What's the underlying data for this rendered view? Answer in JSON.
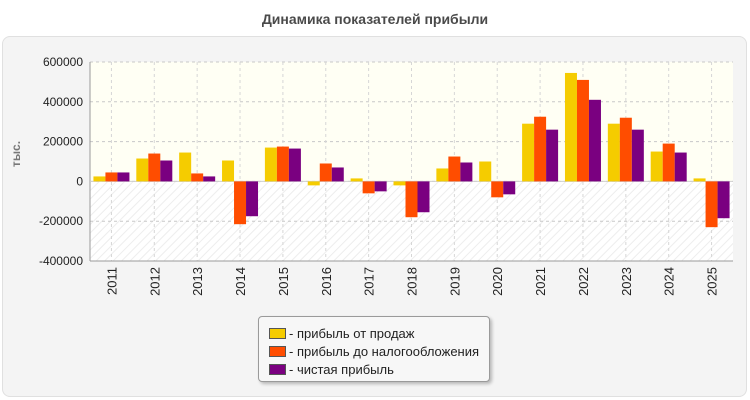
{
  "chart_data": {
    "type": "bar",
    "title": "Динамика показателей прибыли",
    "ylabel": "тыс.",
    "xlabel": "",
    "categories": [
      "2011",
      "2012",
      "2013",
      "2014",
      "2015",
      "2016",
      "2017",
      "2018",
      "2019",
      "2020",
      "2021",
      "2022",
      "2023",
      "2024",
      "2025"
    ],
    "series": [
      {
        "name": "прибыль от продаж",
        "color": "#f5cc00",
        "values": [
          25000,
          115000,
          145000,
          105000,
          170000,
          -20000,
          15000,
          -20000,
          65000,
          100000,
          290000,
          545000,
          290000,
          150000,
          15000
        ]
      },
      {
        "name": "прибыль до налогообложения",
        "color": "#ff4d00",
        "values": [
          45000,
          140000,
          40000,
          -215000,
          175000,
          90000,
          -60000,
          -180000,
          125000,
          -80000,
          325000,
          510000,
          320000,
          190000,
          -230000
        ]
      },
      {
        "name": "чистая прибыль",
        "color": "#7a0080",
        "values": [
          45000,
          105000,
          25000,
          -175000,
          165000,
          70000,
          -50000,
          -155000,
          95000,
          -65000,
          260000,
          410000,
          260000,
          145000,
          -185000
        ]
      }
    ],
    "ylim": [
      -400000,
      600000
    ],
    "yticks": [
      "600000",
      "400000",
      "200000",
      "0",
      "-200000",
      "-400000"
    ],
    "grid": true,
    "legend_position": "bottom"
  }
}
